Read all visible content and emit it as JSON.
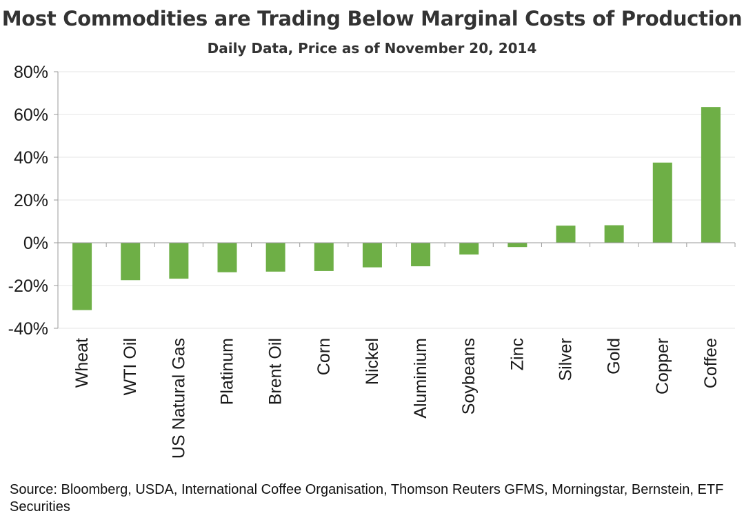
{
  "title": "Most Commodities are Trading Below Marginal Costs of Production",
  "subtitle": "Daily Data, Price as of November 20, 2014",
  "source": "Source: Bloomberg, USDA, International Coffee Organisation, Thomson Reuters GFMS, Morningstar, Bernstein, ETF Securities",
  "colors": {
    "bar": "#6eaf46",
    "grid": "#e6e6e6",
    "axis": "#9a9a9a"
  },
  "chart_data": {
    "type": "bar",
    "categories": [
      "Wheat",
      "WTI Oil",
      "US Natural Gas",
      "Platinum",
      "Brent Oil",
      "Corn",
      "Nickel",
      "Aluminium",
      "Soybeans",
      "Zinc",
      "Silver",
      "Gold",
      "Copper",
      "Coffee"
    ],
    "values": [
      -31.5,
      -17.5,
      -16.8,
      -13.8,
      -13.5,
      -13.2,
      -11.5,
      -11,
      -5.5,
      -2,
      8,
      8.2,
      37.5,
      63.5
    ],
    "ylim": [
      -40,
      80
    ],
    "yticks": [
      -40,
      -20,
      0,
      20,
      40,
      60,
      80
    ],
    "ytick_labels": [
      "-40%",
      "-20%",
      "0%",
      "20%",
      "40%",
      "60%",
      "80%"
    ],
    "grid": true,
    "legend": "none"
  }
}
